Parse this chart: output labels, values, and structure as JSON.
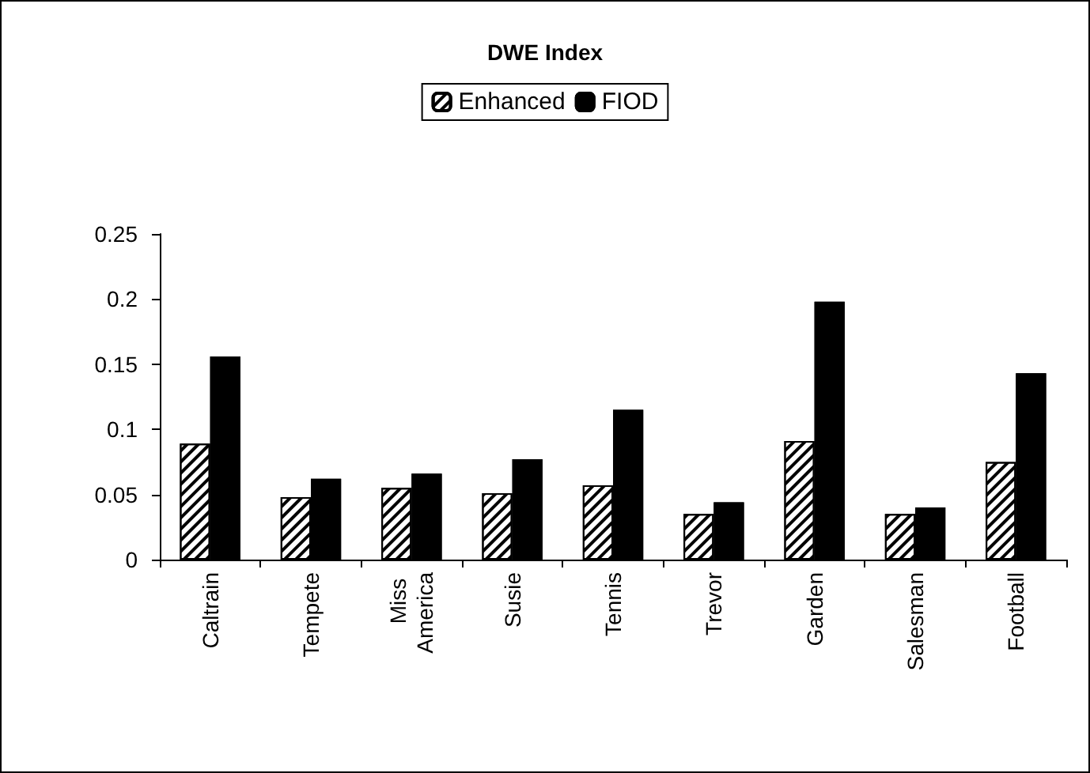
{
  "chart_data": {
    "type": "bar",
    "title": "DWE Index",
    "categories": [
      "Caltrain",
      "Tempete",
      "Miss America",
      "Susie",
      "Tennis",
      "Trevor",
      "Garden",
      "Salesman",
      "Football"
    ],
    "series": [
      {
        "name": "Enhanced",
        "color": "#ffffff",
        "values": [
          0.089,
          0.048,
          0.055,
          0.051,
          0.057,
          0.035,
          0.091,
          0.035,
          0.075
        ]
      },
      {
        "name": "FIOD",
        "color": "#000000",
        "values": [
          0.156,
          0.062,
          0.066,
          0.077,
          0.115,
          0.044,
          0.198,
          0.04,
          0.143
        ]
      }
    ],
    "ylim": [
      0,
      0.25
    ],
    "yticks": [
      0,
      0.05,
      0.1,
      0.15,
      0.2,
      0.25
    ],
    "grid": false,
    "legend": "top"
  }
}
